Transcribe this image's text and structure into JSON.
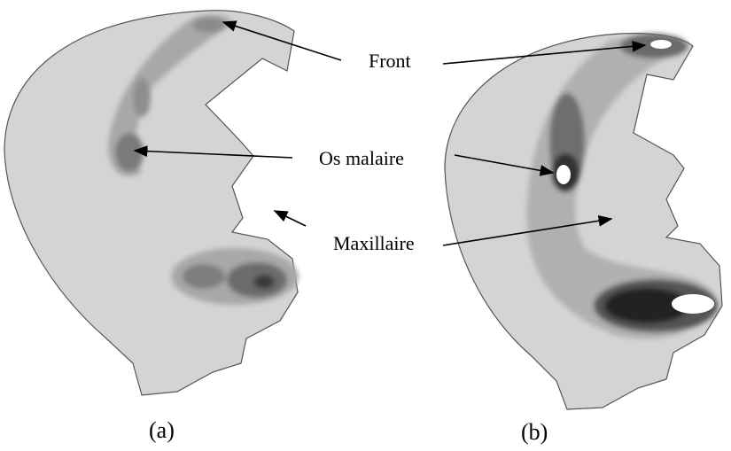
{
  "labels": {
    "front": "Front",
    "os_malaire": "Os malaire",
    "maxillaire": "Maxillaire"
  },
  "panels": [
    {
      "caption": "(a)"
    },
    {
      "caption": "(b)"
    }
  ]
}
